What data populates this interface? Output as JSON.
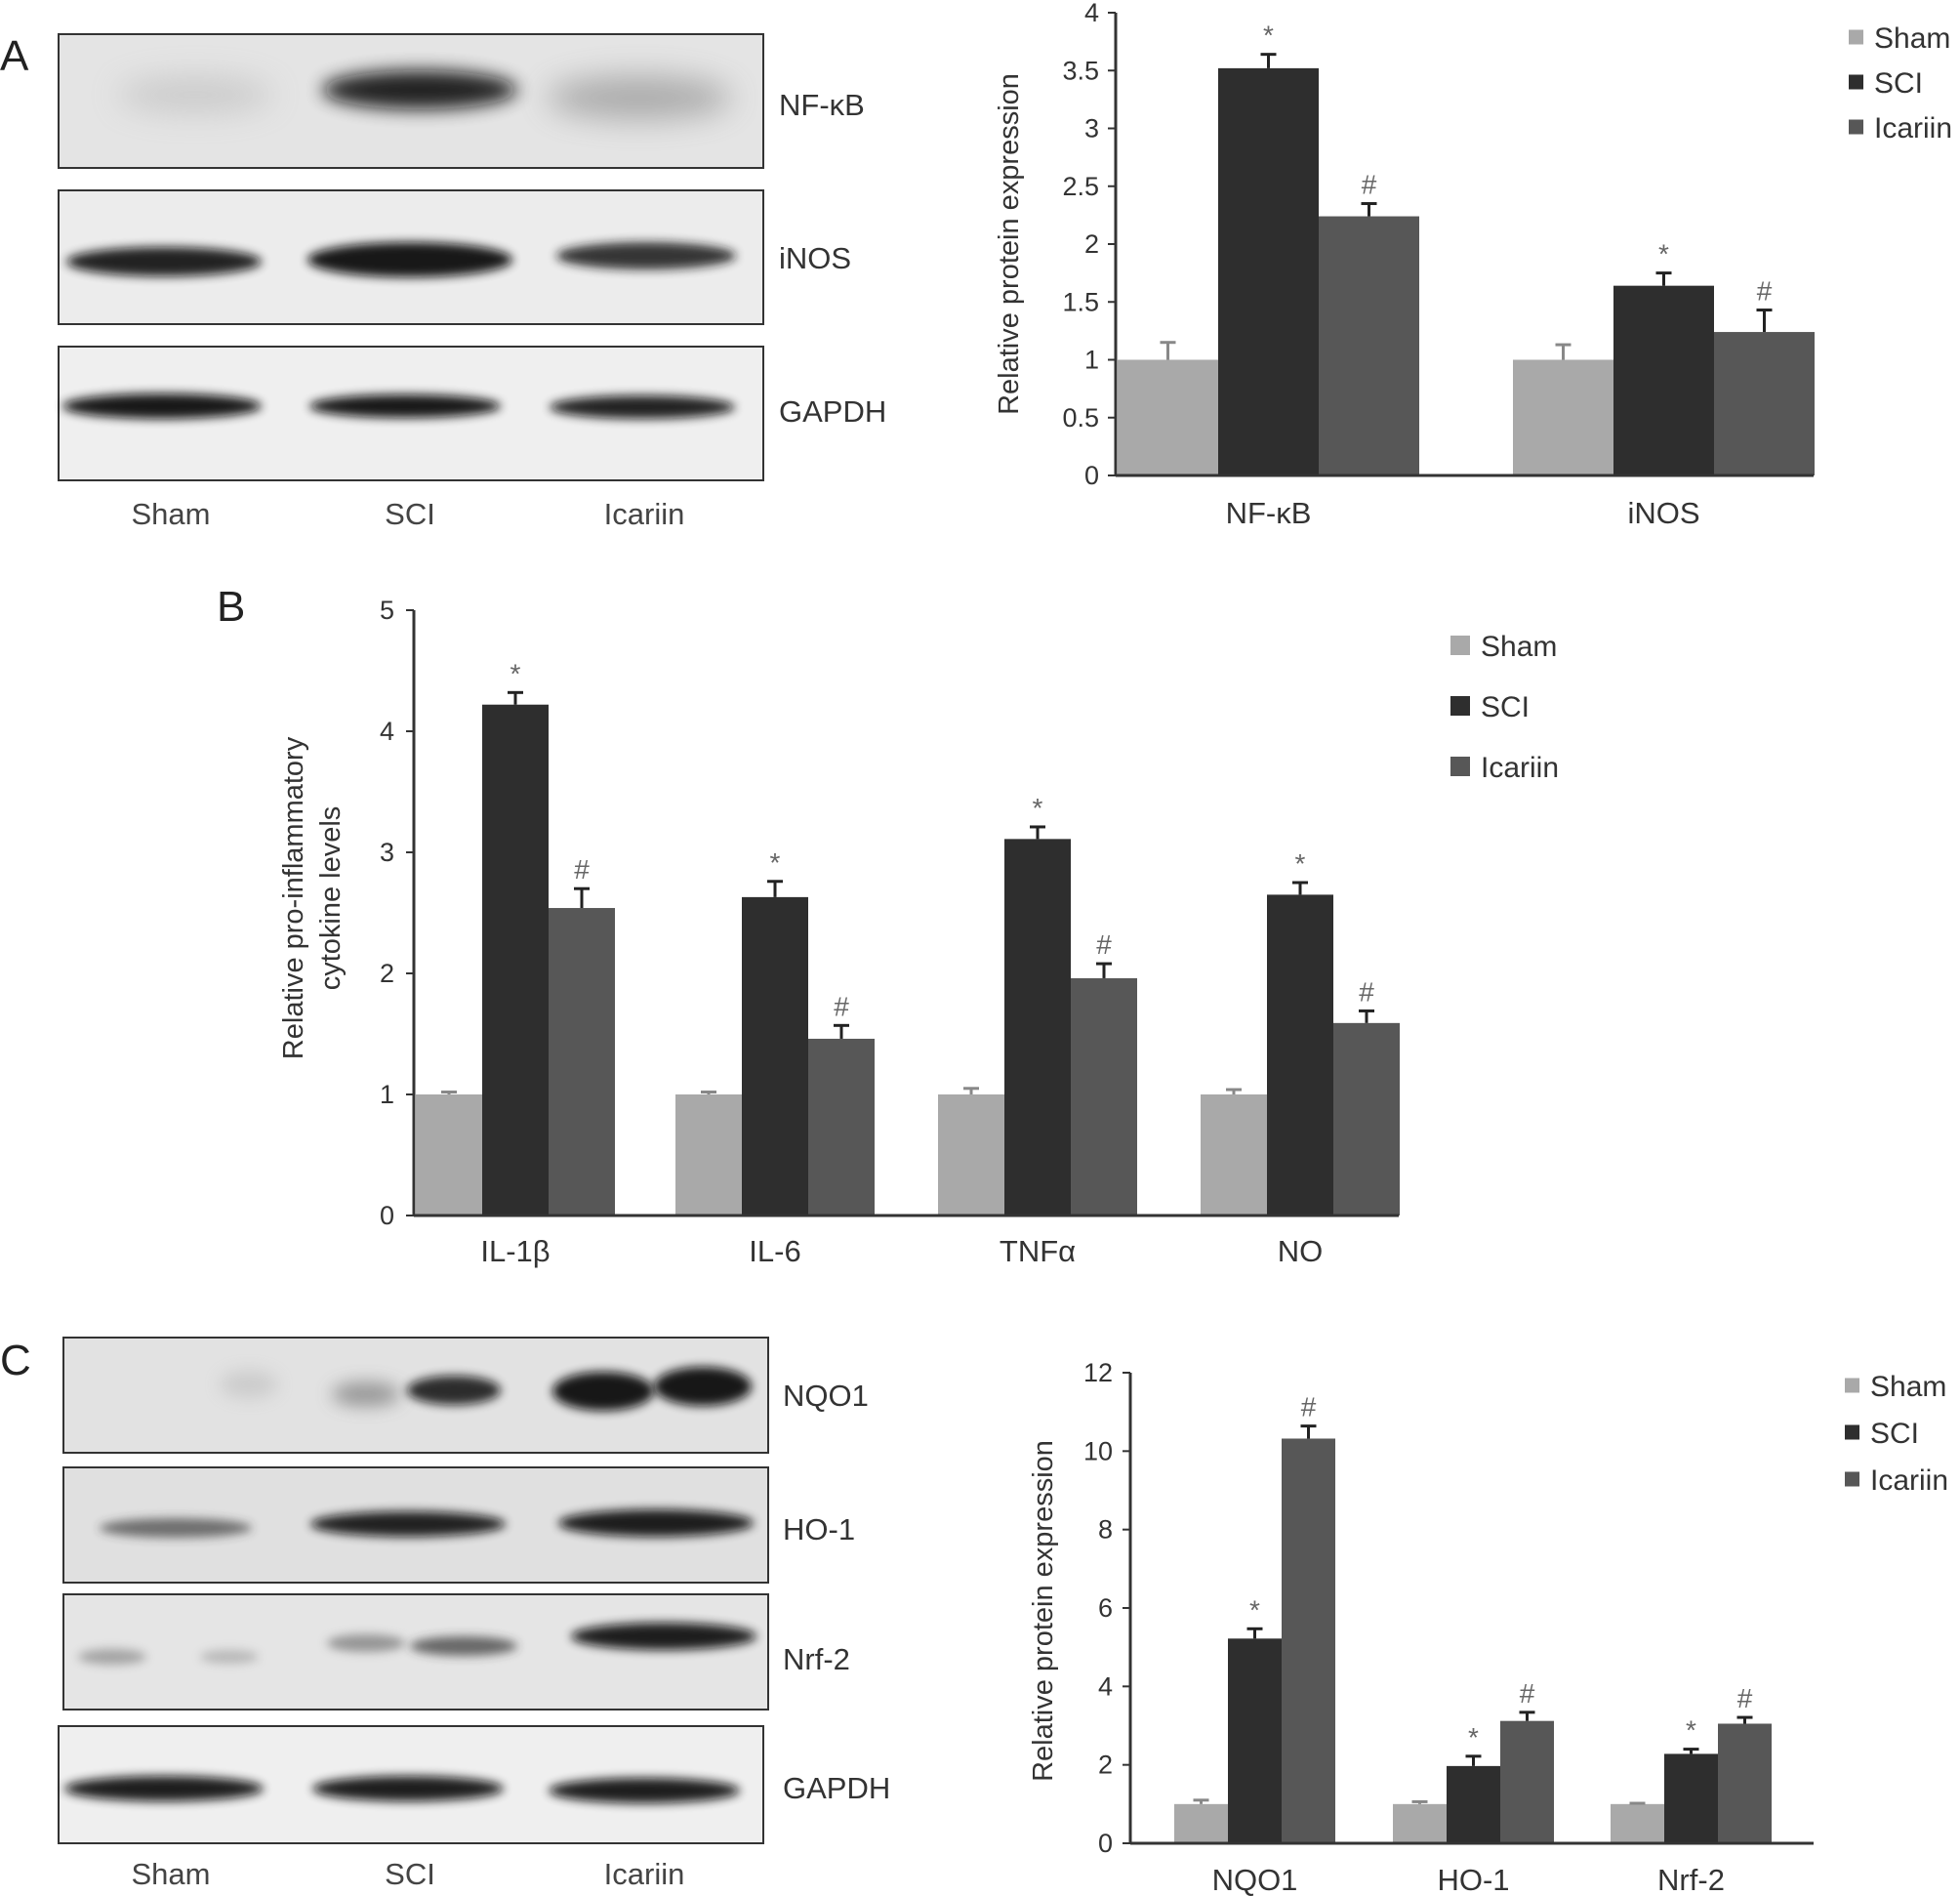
{
  "panels": [
    {
      "letter": "A",
      "blot": {
        "bands": [
          "NF-κB",
          "iNOS",
          "GAPDH"
        ],
        "lanes": [
          "Sham",
          "SCI",
          "Icariin"
        ]
      }
    },
    {
      "letter": "B"
    },
    {
      "letter": "C",
      "blot": {
        "bands": [
          "NQO1",
          "HO-1",
          "Nrf-2",
          "GAPDH"
        ],
        "lanes": [
          "Sham",
          "SCI",
          "Icariin"
        ]
      }
    }
  ],
  "colors": {
    "sham": "#a9a9a9",
    "sci": "#2e2e2e",
    "icariin": "#575757"
  },
  "chart_data": [
    {
      "panel": "A",
      "type": "bar",
      "categories": [
        "NF-κB",
        "iNOS"
      ],
      "series": [
        {
          "name": "Sham",
          "values": [
            1.0,
            1.0
          ],
          "errors": [
            0.15,
            0.13
          ],
          "marks": [
            "",
            ""
          ]
        },
        {
          "name": "SCI",
          "values": [
            3.52,
            1.64
          ],
          "errors": [
            0.12,
            0.11
          ],
          "marks": [
            "*",
            "*"
          ]
        },
        {
          "name": "Icariin",
          "values": [
            2.24,
            1.24
          ],
          "errors": [
            0.11,
            0.19
          ],
          "marks": [
            "#",
            "#"
          ]
        }
      ],
      "ylabel": "Relative protein expression",
      "ylim": [
        0,
        4
      ],
      "yticks": [
        "0",
        "0.5",
        "1",
        "1.5",
        "2",
        "2.5",
        "3",
        "3.5",
        "4"
      ],
      "legend_position": "top-right"
    },
    {
      "panel": "B",
      "type": "bar",
      "categories": [
        "IL-1β",
        "IL-6",
        "TNFα",
        "NO"
      ],
      "series": [
        {
          "name": "Sham",
          "values": [
            1.0,
            1.0,
            1.0,
            1.0
          ],
          "errors": [
            0.02,
            0.02,
            0.05,
            0.04
          ],
          "marks": [
            "",
            "",
            "",
            ""
          ]
        },
        {
          "name": "SCI",
          "values": [
            4.22,
            2.63,
            3.11,
            2.65
          ],
          "errors": [
            0.1,
            0.13,
            0.1,
            0.1
          ],
          "marks": [
            "*",
            "*",
            "*",
            "*"
          ]
        },
        {
          "name": "Icariin",
          "values": [
            2.54,
            1.46,
            1.96,
            1.59
          ],
          "errors": [
            0.16,
            0.11,
            0.12,
            0.1
          ],
          "marks": [
            "#",
            "#",
            "#",
            "#"
          ]
        }
      ],
      "ylabel": "Relative pro-inflammatory cytokine levels",
      "ylabel_lines": [
        "Relative pro-inflammatory",
        "cytokine levels"
      ],
      "ylim": [
        0,
        5
      ],
      "yticks": [
        "0",
        "1",
        "2",
        "3",
        "4",
        "5"
      ],
      "legend_position": "top-right"
    },
    {
      "panel": "C",
      "type": "bar",
      "categories": [
        "NQO1",
        "HO-1",
        "Nrf-2"
      ],
      "series": [
        {
          "name": "Sham",
          "values": [
            1.0,
            1.0,
            1.0
          ],
          "errors": [
            0.1,
            0.06,
            0.02
          ],
          "marks": [
            "",
            "",
            ""
          ]
        },
        {
          "name": "SCI",
          "values": [
            5.22,
            1.97,
            2.28
          ],
          "errors": [
            0.25,
            0.25,
            0.12
          ],
          "marks": [
            "*",
            "*",
            "*"
          ]
        },
        {
          "name": "Icariin",
          "values": [
            10.32,
            3.12,
            3.05
          ],
          "errors": [
            0.32,
            0.22,
            0.16
          ],
          "marks": [
            "#",
            "#",
            "#"
          ]
        }
      ],
      "ylabel": "Relative protein expression",
      "ylim": [
        0,
        12
      ],
      "yticks": [
        "0",
        "2",
        "4",
        "6",
        "8",
        "10",
        "12"
      ],
      "legend_position": "top-right"
    }
  ]
}
